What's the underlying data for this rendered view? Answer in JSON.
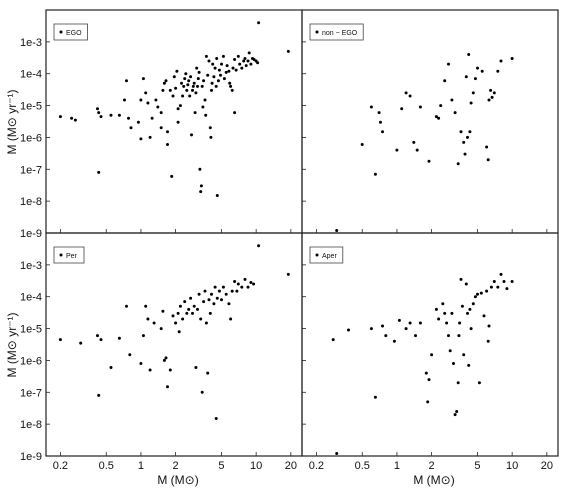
{
  "chart_data": [
    {
      "type": "scatter",
      "panel": "top-left",
      "legend": "EGO",
      "legend_position": "top-left",
      "x_scale": "log",
      "y_scale": "log",
      "xlim": [
        0.15,
        25
      ],
      "ylim": [
        1e-09,
        0.01
      ],
      "ylabel": "M (M⊙ yr⁻¹)",
      "points": [
        [
          0.2,
          4.5e-06
        ],
        [
          0.25,
          4e-06
        ],
        [
          0.27,
          3.5e-06
        ],
        [
          0.42,
          8e-06
        ],
        [
          0.43,
          6e-06
        ],
        [
          0.45,
          4.5e-06
        ],
        [
          0.43,
          8e-08
        ],
        [
          0.55,
          5e-06
        ],
        [
          0.65,
          5e-06
        ],
        [
          0.75,
          6e-05
        ],
        [
          0.72,
          1.5e-05
        ],
        [
          0.78,
          4e-06
        ],
        [
          0.82,
          2e-06
        ],
        [
          0.95,
          3e-06
        ],
        [
          1.0,
          9e-07
        ],
        [
          1.0,
          1.5e-05
        ],
        [
          1.05,
          7e-05
        ],
        [
          1.1,
          2.5e-05
        ],
        [
          1.15,
          1.2e-05
        ],
        [
          1.2,
          1e-06
        ],
        [
          1.25,
          4e-06
        ],
        [
          1.35,
          1.5e-05
        ],
        [
          1.4,
          9e-06
        ],
        [
          1.5,
          6e-06
        ],
        [
          1.5,
          2e-06
        ],
        [
          1.55,
          3e-05
        ],
        [
          1.6,
          5e-05
        ],
        [
          1.7,
          1.5e-06
        ],
        [
          1.7,
          6e-07
        ],
        [
          1.8,
          3e-05
        ],
        [
          1.85,
          6e-08
        ],
        [
          1.9,
          2e-05
        ],
        [
          2.0,
          3.5e-05
        ],
        [
          2.1,
          8e-06
        ],
        [
          2.1,
          3e-06
        ],
        [
          2.2,
          1e-05
        ],
        [
          2.25,
          5e-05
        ],
        [
          2.3,
          2e-05
        ],
        [
          2.35,
          4e-05
        ],
        [
          2.4,
          7e-05
        ],
        [
          2.45,
          0.0001
        ],
        [
          2.5,
          3e-05
        ],
        [
          2.55,
          4.5e-05
        ],
        [
          2.6,
          6e-05
        ],
        [
          2.65,
          2e-05
        ],
        [
          2.7,
          8e-05
        ],
        [
          2.75,
          1.2e-06
        ],
        [
          2.8,
          3e-05
        ],
        [
          2.85,
          4e-05
        ],
        [
          2.9,
          5e-05
        ],
        [
          2.95,
          6e-06
        ],
        [
          3.0,
          2.5e-05
        ],
        [
          3.05,
          0.00015
        ],
        [
          3.1,
          4e-05
        ],
        [
          3.15,
          7e-05
        ],
        [
          3.2,
          0.00011
        ],
        [
          3.25,
          1e-07
        ],
        [
          3.3,
          2e-08
        ],
        [
          3.35,
          3e-08
        ],
        [
          3.4,
          4e-05
        ],
        [
          3.5,
          6e-05
        ],
        [
          3.6,
          1.5e-05
        ],
        [
          3.65,
          5e-06
        ],
        [
          3.7,
          0.00035
        ],
        [
          3.8,
          9e-05
        ],
        [
          3.9,
          0.00025
        ],
        [
          4.0,
          2e-06
        ],
        [
          4.05,
          1e-06
        ],
        [
          4.1,
          3e-05
        ],
        [
          4.15,
          5e-05
        ],
        [
          4.2,
          0.0002
        ],
        [
          4.3,
          8e-05
        ],
        [
          4.4,
          0.00015
        ],
        [
          4.5,
          4e-05
        ],
        [
          4.55,
          0.0003
        ],
        [
          4.6,
          1.5e-08
        ],
        [
          4.7,
          6e-05
        ],
        [
          4.8,
          0.00013
        ],
        [
          4.9,
          9e-05
        ],
        [
          5.0,
          0.0002
        ],
        [
          5.2,
          0.00035
        ],
        [
          5.3,
          7e-05
        ],
        [
          5.5,
          0.00011
        ],
        [
          5.6,
          0.00018
        ],
        [
          5.8,
          0.00012
        ],
        [
          5.9,
          5e-05
        ],
        [
          6.0,
          4e-05
        ],
        [
          6.2,
          3e-05
        ],
        [
          6.3,
          0.00015
        ],
        [
          6.5,
          6e-06
        ],
        [
          6.5,
          0.00028
        ],
        [
          6.7,
          0.00013
        ],
        [
          7.0,
          0.00035
        ],
        [
          7.2,
          0.0002
        ],
        [
          7.5,
          0.00015
        ],
        [
          7.8,
          0.00025
        ],
        [
          8.0,
          0.0003
        ],
        [
          8.2,
          0.00018
        ],
        [
          8.5,
          0.00025
        ],
        [
          8.7,
          0.00045
        ],
        [
          9.0,
          0.0002
        ],
        [
          9.3,
          0.0003
        ],
        [
          9.6,
          0.00028
        ],
        [
          10.0,
          0.00025
        ],
        [
          10.3,
          0.00022
        ],
        [
          10.5,
          0.004
        ],
        [
          19.0,
          0.0005
        ],
        [
          1.65,
          6e-05
        ],
        [
          1.95,
          8e-05
        ],
        [
          2.05,
          0.00012
        ],
        [
          3.45,
          9e-06
        ]
      ]
    },
    {
      "type": "scatter",
      "panel": "top-right",
      "legend": "non − EGO",
      "legend_position": "top-left",
      "x_scale": "log",
      "y_scale": "log",
      "xlim": [
        0.15,
        25
      ],
      "ylim": [
        1e-09,
        0.01
      ],
      "points": [
        [
          0.3,
          1.2e-09
        ],
        [
          0.5,
          6e-07
        ],
        [
          0.6,
          9e-06
        ],
        [
          0.65,
          7e-08
        ],
        [
          0.7,
          6e-06
        ],
        [
          0.72,
          3e-06
        ],
        [
          0.75,
          1.5e-06
        ],
        [
          1.0,
          4e-07
        ],
        [
          1.1,
          8e-06
        ],
        [
          1.2,
          2.5e-05
        ],
        [
          1.3,
          2e-05
        ],
        [
          1.4,
          7e-07
        ],
        [
          1.5,
          4e-07
        ],
        [
          1.6,
          9e-06
        ],
        [
          1.9,
          1.8e-07
        ],
        [
          2.2,
          4.5e-06
        ],
        [
          2.3,
          4e-06
        ],
        [
          2.4,
          1e-05
        ],
        [
          2.6,
          6e-05
        ],
        [
          2.8,
          0.0002
        ],
        [
          3.0,
          1.5e-05
        ],
        [
          3.2,
          6e-06
        ],
        [
          3.4,
          1.5e-07
        ],
        [
          3.6,
          1.5e-06
        ],
        [
          3.8,
          7e-07
        ],
        [
          3.9,
          3e-07
        ],
        [
          4.0,
          8e-05
        ],
        [
          4.1,
          1e-06
        ],
        [
          4.2,
          0.0004
        ],
        [
          4.3,
          1.5e-06
        ],
        [
          4.4,
          1.2e-05
        ],
        [
          4.6,
          2.5e-05
        ],
        [
          4.8,
          7e-05
        ],
        [
          5.0,
          0.00015
        ],
        [
          5.5,
          0.00012
        ],
        [
          6.0,
          5e-07
        ],
        [
          6.2,
          2e-07
        ],
        [
          6.3,
          1.5e-05
        ],
        [
          6.5,
          3e-05
        ],
        [
          6.7,
          1.8e-05
        ],
        [
          7.0,
          2.5e-05
        ],
        [
          7.5,
          0.00012
        ],
        [
          8.0,
          0.00025
        ],
        [
          10.0,
          0.0003
        ]
      ]
    },
    {
      "type": "scatter",
      "panel": "bottom-left",
      "legend": "Per",
      "legend_position": "top-left",
      "x_scale": "log",
      "y_scale": "log",
      "xlim": [
        0.15,
        25
      ],
      "ylim": [
        1e-09,
        0.01
      ],
      "xlabel": "M (M⊙)",
      "ylabel": "M (M⊙ yr⁻¹)",
      "points": [
        [
          0.2,
          4.5e-06
        ],
        [
          0.3,
          3.5e-06
        ],
        [
          0.42,
          6e-06
        ],
        [
          0.45,
          4.5e-06
        ],
        [
          0.43,
          8e-08
        ],
        [
          0.55,
          6e-07
        ],
        [
          0.65,
          5e-06
        ],
        [
          0.75,
          5e-05
        ],
        [
          0.8,
          1.5e-06
        ],
        [
          1.0,
          8e-07
        ],
        [
          1.05,
          6e-06
        ],
        [
          1.1,
          5e-05
        ],
        [
          1.15,
          2e-05
        ],
        [
          1.2,
          5e-07
        ],
        [
          1.3,
          1.5e-05
        ],
        [
          1.5,
          1e-05
        ],
        [
          1.55,
          3.5e-05
        ],
        [
          1.6,
          1e-06
        ],
        [
          1.7,
          1.5e-07
        ],
        [
          1.8,
          5e-07
        ],
        [
          1.9,
          2.5e-05
        ],
        [
          2.0,
          1.5e-05
        ],
        [
          2.1,
          3e-05
        ],
        [
          2.2,
          5e-05
        ],
        [
          2.3,
          2e-05
        ],
        [
          2.4,
          7e-05
        ],
        [
          2.5,
          3e-05
        ],
        [
          2.6,
          4e-05
        ],
        [
          2.7,
          9e-05
        ],
        [
          2.8,
          3e-05
        ],
        [
          2.9,
          5e-05
        ],
        [
          3.0,
          6e-07
        ],
        [
          3.1,
          4e-05
        ],
        [
          3.2,
          0.00012
        ],
        [
          3.3,
          2e-05
        ],
        [
          3.4,
          1e-07
        ],
        [
          3.5,
          7e-05
        ],
        [
          3.6,
          0.00015
        ],
        [
          3.7,
          1.5e-05
        ],
        [
          3.8,
          4e-07
        ],
        [
          3.9,
          8e-05
        ],
        [
          4.0,
          3e-05
        ],
        [
          4.1,
          0.00012
        ],
        [
          4.3,
          6e-05
        ],
        [
          4.4,
          0.0002
        ],
        [
          4.5,
          1.5e-08
        ],
        [
          4.6,
          9e-05
        ],
        [
          4.8,
          0.00015
        ],
        [
          5.0,
          8e-05
        ],
        [
          5.2,
          0.0002
        ],
        [
          5.5,
          0.00012
        ],
        [
          5.8,
          6e-05
        ],
        [
          6.0,
          2e-05
        ],
        [
          6.2,
          0.00015
        ],
        [
          6.5,
          0.0003
        ],
        [
          6.8,
          0.00015
        ],
        [
          7.0,
          0.00025
        ],
        [
          7.5,
          0.0002
        ],
        [
          8.0,
          0.00035
        ],
        [
          8.5,
          0.0002
        ],
        [
          9.0,
          0.00028
        ],
        [
          9.5,
          0.00025
        ],
        [
          10.5,
          0.004
        ],
        [
          19.0,
          0.0005
        ],
        [
          2.15,
          8e-06
        ],
        [
          1.65,
          1.2e-06
        ]
      ]
    },
    {
      "type": "scatter",
      "panel": "bottom-right",
      "legend": "Aper",
      "legend_position": "top-left",
      "x_scale": "log",
      "y_scale": "log",
      "xlim": [
        0.15,
        25
      ],
      "ylim": [
        1e-09,
        0.01
      ],
      "xlabel": "M (M⊙)",
      "points": [
        [
          0.28,
          4.5e-06
        ],
        [
          0.3,
          1.2e-09
        ],
        [
          0.38,
          9e-06
        ],
        [
          0.6,
          1e-05
        ],
        [
          0.65,
          7e-08
        ],
        [
          0.75,
          1.2e-05
        ],
        [
          0.8,
          6e-06
        ],
        [
          0.95,
          4e-06
        ],
        [
          1.05,
          1.8e-05
        ],
        [
          1.2,
          1e-05
        ],
        [
          1.3,
          1.5e-05
        ],
        [
          1.45,
          6e-06
        ],
        [
          1.6,
          1.5e-05
        ],
        [
          1.8,
          4e-07
        ],
        [
          1.85,
          5e-08
        ],
        [
          1.9,
          2.5e-07
        ],
        [
          2.0,
          1.5e-06
        ],
        [
          2.2,
          4e-05
        ],
        [
          2.3,
          2e-05
        ],
        [
          2.5,
          6e-05
        ],
        [
          2.6,
          3e-05
        ],
        [
          2.7,
          1.5e-05
        ],
        [
          2.8,
          6e-06
        ],
        [
          2.9,
          2e-06
        ],
        [
          3.0,
          3e-05
        ],
        [
          3.1,
          8e-07
        ],
        [
          3.2,
          2e-08
        ],
        [
          3.3,
          2.5e-08
        ],
        [
          3.4,
          2e-07
        ],
        [
          3.5,
          1.5e-05
        ],
        [
          3.6,
          0.00035
        ],
        [
          3.7,
          5e-05
        ],
        [
          3.8,
          1.5e-06
        ],
        [
          4.0,
          0.00025
        ],
        [
          4.1,
          3e-05
        ],
        [
          4.2,
          7e-07
        ],
        [
          4.3,
          4e-05
        ],
        [
          4.4,
          1e-05
        ],
        [
          4.6,
          6e-05
        ],
        [
          4.8,
          0.0001
        ],
        [
          5.0,
          0.00012
        ],
        [
          5.2,
          2e-07
        ],
        [
          5.4,
          0.00013
        ],
        [
          5.7,
          2.5e-05
        ],
        [
          6.0,
          0.00015
        ],
        [
          6.3,
          1.2e-05
        ],
        [
          6.6,
          0.0002
        ],
        [
          7.0,
          0.0003
        ],
        [
          7.5,
          0.0002
        ],
        [
          8.0,
          0.0005
        ],
        [
          8.5,
          0.0003
        ],
        [
          9.0,
          0.00018
        ],
        [
          10.0,
          0.0003
        ],
        [
          3.45,
          6e-06
        ],
        [
          6.2,
          4e-06
        ]
      ]
    }
  ],
  "axes": {
    "y_ticks": [
      "1e-9",
      "1e-8",
      "1e-7",
      "1e-6",
      "1e-5",
      "1e-4",
      "1e-3"
    ],
    "x_ticks": [
      "0.2",
      "0.5",
      "1",
      "2",
      "5",
      "10",
      "20"
    ]
  }
}
